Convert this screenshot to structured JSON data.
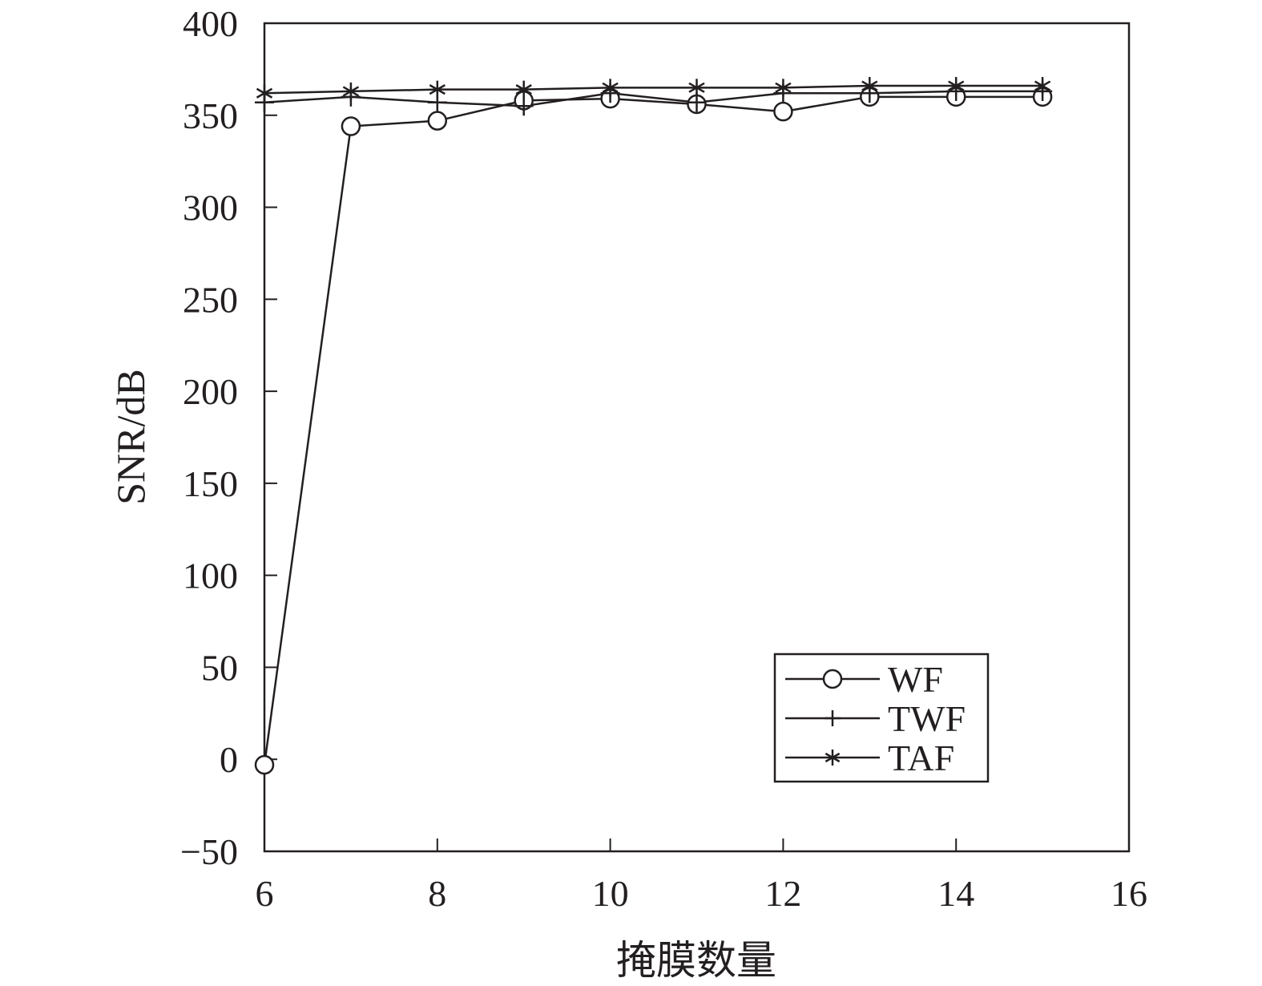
{
  "chart_data": {
    "type": "line",
    "xlabel": "掩膜数量",
    "ylabel": "SNR/dB",
    "xlim": [
      6,
      16
    ],
    "ylim": [
      -50,
      400
    ],
    "x_ticks": [
      "6",
      "8",
      "10",
      "12",
      "14",
      "16"
    ],
    "y_ticks": [
      "400",
      "350",
      "300",
      "250",
      "200",
      "150",
      "100",
      "50",
      "0",
      "−50"
    ],
    "grid": false,
    "legend_position": "bottom-right",
    "series": [
      {
        "name": "WF",
        "marker": "circle",
        "x": [
          6,
          7,
          8,
          9,
          10,
          11,
          12,
          13,
          14,
          15
        ],
        "y": [
          -3,
          344,
          347,
          358,
          359,
          356,
          352,
          360,
          360,
          360
        ]
      },
      {
        "name": "TWF",
        "marker": "plus",
        "x": [
          6,
          7,
          8,
          9,
          10,
          11,
          12,
          13,
          14,
          15
        ],
        "y": [
          357,
          360,
          357,
          355,
          362,
          357,
          362,
          362,
          363,
          363
        ]
      },
      {
        "name": "TAF",
        "marker": "asterisk",
        "x": [
          6,
          7,
          8,
          9,
          10,
          11,
          12,
          13,
          14,
          15
        ],
        "y": [
          362,
          363,
          364,
          364,
          365,
          365,
          365,
          366,
          366,
          366
        ]
      }
    ],
    "colors": {
      "line": "#231f20",
      "background": "#ffffff"
    }
  }
}
